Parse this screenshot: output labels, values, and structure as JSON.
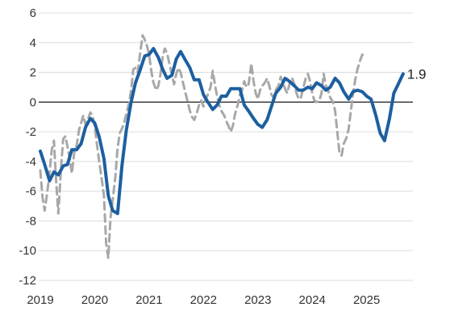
{
  "chart_data": {
    "type": "line",
    "title": "",
    "xlabel": "",
    "ylabel": "",
    "ylim": [
      -12,
      6
    ],
    "y_ticks": [
      -12,
      -10,
      -8,
      -6,
      -4,
      -2,
      0,
      2,
      4,
      6
    ],
    "x_ticks": [
      "2019",
      "2020",
      "2021",
      "2022",
      "2023",
      "2024",
      "2025"
    ],
    "xlim": [
      2019.0,
      2025.85
    ],
    "grid": "horizontal",
    "zero_line": true,
    "legend": "none",
    "end_label": "1.9",
    "series": [
      {
        "color": "#1d5fa0",
        "style": "solid",
        "points": [
          [
            2019.0,
            -3.3
          ],
          [
            2019.08,
            -4.2
          ],
          [
            2019.17,
            -5.3
          ],
          [
            2019.25,
            -4.7
          ],
          [
            2019.33,
            -4.9
          ],
          [
            2019.42,
            -4.3
          ],
          [
            2019.5,
            -4.2
          ],
          [
            2019.58,
            -3.2
          ],
          [
            2019.67,
            -3.2
          ],
          [
            2019.75,
            -2.8
          ],
          [
            2019.83,
            -1.7
          ],
          [
            2019.92,
            -1.1
          ],
          [
            2020.0,
            -1.4
          ],
          [
            2020.08,
            -2.3
          ],
          [
            2020.17,
            -3.8
          ],
          [
            2020.25,
            -6.3
          ],
          [
            2020.33,
            -7.3
          ],
          [
            2020.42,
            -7.5
          ],
          [
            2020.5,
            -4.3
          ],
          [
            2020.58,
            -1.9
          ],
          [
            2020.67,
            0.0
          ],
          [
            2020.75,
            1.3
          ],
          [
            2020.83,
            2.1
          ],
          [
            2020.92,
            3.1
          ],
          [
            2021.0,
            3.2
          ],
          [
            2021.08,
            3.6
          ],
          [
            2021.17,
            3.0
          ],
          [
            2021.25,
            2.2
          ],
          [
            2021.33,
            1.6
          ],
          [
            2021.42,
            1.8
          ],
          [
            2021.5,
            2.9
          ],
          [
            2021.58,
            3.4
          ],
          [
            2021.67,
            2.8
          ],
          [
            2021.75,
            2.3
          ],
          [
            2021.83,
            1.5
          ],
          [
            2021.92,
            1.5
          ],
          [
            2022.0,
            0.5
          ],
          [
            2022.08,
            0.0
          ],
          [
            2022.17,
            -0.5
          ],
          [
            2022.25,
            -0.2
          ],
          [
            2022.33,
            0.4
          ],
          [
            2022.42,
            0.4
          ],
          [
            2022.5,
            0.9
          ],
          [
            2022.58,
            0.9
          ],
          [
            2022.67,
            0.9
          ],
          [
            2022.75,
            -0.2
          ],
          [
            2022.83,
            -0.6
          ],
          [
            2022.92,
            -1.1
          ],
          [
            2023.0,
            -1.5
          ],
          [
            2023.08,
            -1.7
          ],
          [
            2023.17,
            -1.2
          ],
          [
            2023.25,
            -0.3
          ],
          [
            2023.33,
            0.6
          ],
          [
            2023.42,
            1.0
          ],
          [
            2023.5,
            1.6
          ],
          [
            2023.58,
            1.4
          ],
          [
            2023.67,
            1.1
          ],
          [
            2023.75,
            0.8
          ],
          [
            2023.83,
            0.8
          ],
          [
            2023.92,
            1.0
          ],
          [
            2024.0,
            0.9
          ],
          [
            2024.08,
            1.3
          ],
          [
            2024.17,
            1.1
          ],
          [
            2024.25,
            0.8
          ],
          [
            2024.33,
            1.0
          ],
          [
            2024.42,
            1.6
          ],
          [
            2024.5,
            1.3
          ],
          [
            2024.58,
            0.7
          ],
          [
            2024.67,
            0.2
          ],
          [
            2024.75,
            0.7
          ],
          [
            2024.83,
            0.8
          ],
          [
            2024.92,
            0.7
          ],
          [
            2025.0,
            0.4
          ],
          [
            2025.08,
            0.2
          ],
          [
            2025.17,
            -0.9
          ],
          [
            2025.25,
            -2.1
          ],
          [
            2025.33,
            -2.6
          ],
          [
            2025.42,
            -1.1
          ],
          [
            2025.5,
            0.6
          ],
          [
            2025.58,
            1.2
          ],
          [
            2025.67,
            1.9
          ]
        ]
      },
      {
        "color": "#a8a8a8",
        "style": "dashed",
        "points": [
          [
            2019.0,
            -4.6
          ],
          [
            2019.04,
            -6.4
          ],
          [
            2019.08,
            -7.3
          ],
          [
            2019.13,
            -6.0
          ],
          [
            2019.17,
            -4.7
          ],
          [
            2019.21,
            -3.2
          ],
          [
            2019.25,
            -2.6
          ],
          [
            2019.29,
            -5.3
          ],
          [
            2019.33,
            -7.5
          ],
          [
            2019.38,
            -4.5
          ],
          [
            2019.42,
            -2.5
          ],
          [
            2019.46,
            -2.3
          ],
          [
            2019.5,
            -3.0
          ],
          [
            2019.54,
            -3.8
          ],
          [
            2019.58,
            -4.8
          ],
          [
            2019.63,
            -3.2
          ],
          [
            2019.67,
            -2.9
          ],
          [
            2019.71,
            -1.9
          ],
          [
            2019.75,
            -1.4
          ],
          [
            2019.79,
            -0.9
          ],
          [
            2019.83,
            -1.5
          ],
          [
            2019.88,
            -1.1
          ],
          [
            2019.92,
            -0.7
          ],
          [
            2019.96,
            -0.9
          ],
          [
            2020.0,
            -1.6
          ],
          [
            2020.04,
            -2.8
          ],
          [
            2020.08,
            -3.9
          ],
          [
            2020.13,
            -5.2
          ],
          [
            2020.17,
            -6.3
          ],
          [
            2020.21,
            -9.5
          ],
          [
            2020.25,
            -10.5
          ],
          [
            2020.29,
            -7.8
          ],
          [
            2020.33,
            -6.6
          ],
          [
            2020.38,
            -5.0
          ],
          [
            2020.42,
            -3.1
          ],
          [
            2020.46,
            -2.1
          ],
          [
            2020.5,
            -1.8
          ],
          [
            2020.54,
            -1.4
          ],
          [
            2020.58,
            -0.8
          ],
          [
            2020.63,
            -0.1
          ],
          [
            2020.67,
            0.8
          ],
          [
            2020.71,
            2.2
          ],
          [
            2020.75,
            2.3
          ],
          [
            2020.79,
            2.0
          ],
          [
            2020.83,
            3.1
          ],
          [
            2020.88,
            4.5
          ],
          [
            2020.92,
            4.2
          ],
          [
            2020.96,
            3.8
          ],
          [
            2021.0,
            3.2
          ],
          [
            2021.04,
            2.1
          ],
          [
            2021.08,
            1.3
          ],
          [
            2021.13,
            0.8
          ],
          [
            2021.17,
            1.1
          ],
          [
            2021.21,
            1.9
          ],
          [
            2021.25,
            3.1
          ],
          [
            2021.29,
            3.6
          ],
          [
            2021.33,
            3.3
          ],
          [
            2021.38,
            2.5
          ],
          [
            2021.42,
            1.8
          ],
          [
            2021.46,
            1.2
          ],
          [
            2021.5,
            1.9
          ],
          [
            2021.54,
            2.3
          ],
          [
            2021.58,
            2.0
          ],
          [
            2021.63,
            1.2
          ],
          [
            2021.67,
            0.6
          ],
          [
            2021.71,
            0.0
          ],
          [
            2021.75,
            -0.6
          ],
          [
            2021.79,
            -1.0
          ],
          [
            2021.83,
            -1.2
          ],
          [
            2021.88,
            -0.7
          ],
          [
            2021.92,
            -0.2
          ],
          [
            2021.96,
            0.1
          ],
          [
            2022.0,
            -0.3
          ],
          [
            2022.04,
            0.2
          ],
          [
            2022.08,
            0.5
          ],
          [
            2022.13,
            1.0
          ],
          [
            2022.17,
            2.1
          ],
          [
            2022.21,
            1.2
          ],
          [
            2022.25,
            0.4
          ],
          [
            2022.29,
            -0.2
          ],
          [
            2022.33,
            -0.6
          ],
          [
            2022.38,
            -0.9
          ],
          [
            2022.42,
            -1.3
          ],
          [
            2022.46,
            -1.6
          ],
          [
            2022.5,
            -2.0
          ],
          [
            2022.54,
            -1.6
          ],
          [
            2022.58,
            -0.8
          ],
          [
            2022.63,
            -0.2
          ],
          [
            2022.67,
            0.5
          ],
          [
            2022.71,
            0.8
          ],
          [
            2022.75,
            1.4
          ],
          [
            2022.79,
            1.0
          ],
          [
            2022.83,
            1.2
          ],
          [
            2022.88,
            2.6
          ],
          [
            2022.92,
            1.4
          ],
          [
            2022.96,
            0.6
          ],
          [
            2023.0,
            0.2
          ],
          [
            2023.04,
            0.8
          ],
          [
            2023.08,
            1.1
          ],
          [
            2023.13,
            1.3
          ],
          [
            2023.17,
            1.6
          ],
          [
            2023.21,
            1.1
          ],
          [
            2023.25,
            0.5
          ],
          [
            2023.29,
            0.3
          ],
          [
            2023.33,
            0.8
          ],
          [
            2023.38,
            1.1
          ],
          [
            2023.42,
            1.7
          ],
          [
            2023.46,
            1.3
          ],
          [
            2023.5,
            0.9
          ],
          [
            2023.54,
            0.6
          ],
          [
            2023.58,
            1.2
          ],
          [
            2023.63,
            1.6
          ],
          [
            2023.67,
            1.2
          ],
          [
            2023.71,
            0.6
          ],
          [
            2023.75,
            0.2
          ],
          [
            2023.79,
            0.3
          ],
          [
            2023.83,
            0.9
          ],
          [
            2023.88,
            1.6
          ],
          [
            2023.92,
            1.9
          ],
          [
            2023.96,
            1.4
          ],
          [
            2024.0,
            0.6
          ],
          [
            2024.04,
            0.1
          ],
          [
            2024.08,
            0.0
          ],
          [
            2024.13,
            0.1
          ],
          [
            2024.17,
            0.6
          ],
          [
            2024.21,
            1.9
          ],
          [
            2024.25,
            1.1
          ],
          [
            2024.29,
            0.8
          ],
          [
            2024.33,
            0.3
          ],
          [
            2024.38,
            0.0
          ],
          [
            2024.42,
            -0.6
          ],
          [
            2024.46,
            -2.0
          ],
          [
            2024.5,
            -3.4
          ],
          [
            2024.54,
            -3.6
          ],
          [
            2024.58,
            -2.8
          ],
          [
            2024.63,
            -2.4
          ],
          [
            2024.67,
            -1.8
          ],
          [
            2024.71,
            -0.6
          ],
          [
            2024.75,
            0.6
          ],
          [
            2024.79,
            1.5
          ],
          [
            2024.83,
            2.2
          ],
          [
            2024.88,
            2.8
          ],
          [
            2024.92,
            3.2
          ],
          [
            2024.96,
            2.9
          ]
        ]
      }
    ]
  }
}
